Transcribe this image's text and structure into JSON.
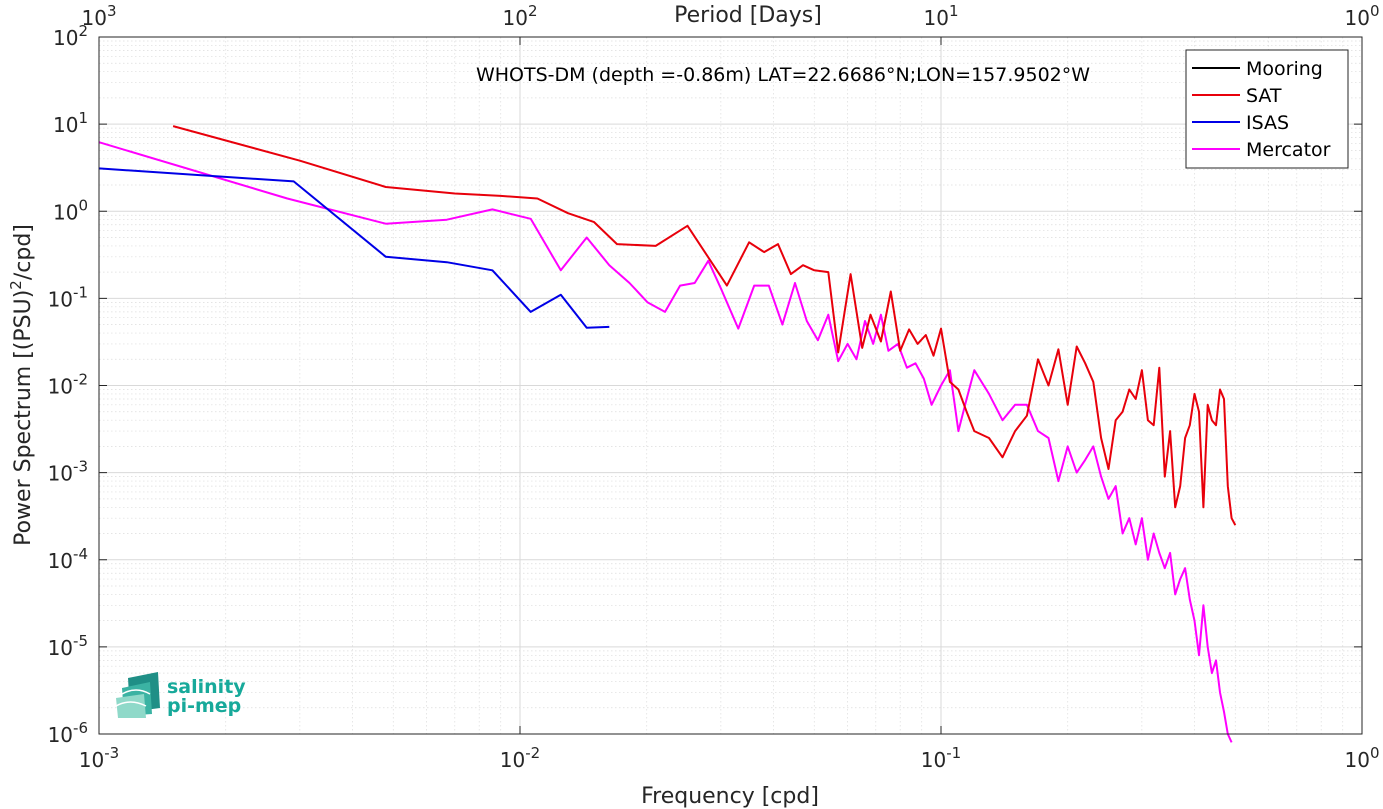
{
  "chart_data": {
    "type": "line",
    "title": "WHOTS-DM (depth =-0.86m) LAT=22.6686°N;LON=157.9502°W",
    "xlabel": "Frequency [cpd]",
    "ylabel": "Power Spectrum [(PSU)^2/cpd]",
    "x2label": "Period [Days]",
    "xscale": "log",
    "yscale": "log",
    "xlim": [
      0.001,
      1
    ],
    "ylim": [
      1e-06,
      100
    ],
    "grid": true,
    "legend_position": "top-right",
    "x_ticks": [
      {
        "value": 0.001,
        "base": "10",
        "exp": "-3"
      },
      {
        "value": 0.01,
        "base": "10",
        "exp": "-2"
      },
      {
        "value": 0.1,
        "base": "10",
        "exp": "-1"
      },
      {
        "value": 1,
        "base": "10",
        "exp": "0"
      }
    ],
    "y_ticks": [
      {
        "value": 1e-06,
        "base": "10",
        "exp": "-6"
      },
      {
        "value": 1e-05,
        "base": "10",
        "exp": "-5"
      },
      {
        "value": 0.0001,
        "base": "10",
        "exp": "-4"
      },
      {
        "value": 0.001,
        "base": "10",
        "exp": "-3"
      },
      {
        "value": 0.01,
        "base": "10",
        "exp": "-2"
      },
      {
        "value": 0.1,
        "base": "10",
        "exp": "-1"
      },
      {
        "value": 1,
        "base": "10",
        "exp": "0"
      },
      {
        "value": 10,
        "base": "10",
        "exp": "1"
      },
      {
        "value": 100,
        "base": "10",
        "exp": "2"
      }
    ],
    "top_ticks": [
      {
        "value": 0.001,
        "base": "10",
        "exp": "3"
      },
      {
        "value": 0.01,
        "base": "10",
        "exp": "2"
      },
      {
        "value": 0.1,
        "base": "10",
        "exp": "1"
      },
      {
        "value": 1,
        "base": "10",
        "exp": "0"
      }
    ],
    "series": [
      {
        "name": "Mooring",
        "color": "#000000",
        "x": [],
        "y": []
      },
      {
        "name": "SAT",
        "color": "#e8000b",
        "x": [
          0.0015,
          0.003,
          0.0048,
          0.007,
          0.009,
          0.011,
          0.013,
          0.015,
          0.017,
          0.021,
          0.025,
          0.031,
          0.035,
          0.038,
          0.041,
          0.044,
          0.047,
          0.05,
          0.054,
          0.057,
          0.061,
          0.065,
          0.068,
          0.072,
          0.076,
          0.08,
          0.084,
          0.088,
          0.092,
          0.096,
          0.1,
          0.105,
          0.11,
          0.115,
          0.12,
          0.13,
          0.14,
          0.15,
          0.16,
          0.17,
          0.18,
          0.19,
          0.2,
          0.21,
          0.22,
          0.23,
          0.24,
          0.25,
          0.26,
          0.27,
          0.28,
          0.29,
          0.3,
          0.31,
          0.32,
          0.33,
          0.34,
          0.35,
          0.36,
          0.37,
          0.38,
          0.39,
          0.4,
          0.41,
          0.42,
          0.43,
          0.44,
          0.45,
          0.46,
          0.47,
          0.48,
          0.49,
          0.5
        ],
        "y": [
          9.5,
          3.8,
          1.9,
          1.6,
          1.5,
          1.4,
          0.95,
          0.75,
          0.42,
          0.4,
          0.68,
          0.14,
          0.44,
          0.34,
          0.42,
          0.19,
          0.24,
          0.21,
          0.2,
          0.024,
          0.19,
          0.027,
          0.065,
          0.032,
          0.12,
          0.025,
          0.044,
          0.03,
          0.038,
          0.022,
          0.045,
          0.011,
          0.009,
          0.005,
          0.003,
          0.0025,
          0.0015,
          0.003,
          0.0045,
          0.02,
          0.01,
          0.026,
          0.006,
          0.028,
          0.018,
          0.011,
          0.0025,
          0.0011,
          0.004,
          0.005,
          0.009,
          0.007,
          0.015,
          0.004,
          0.0035,
          0.016,
          0.0009,
          0.003,
          0.0004,
          0.0007,
          0.0025,
          0.0035,
          0.008,
          0.005,
          0.0004,
          0.006,
          0.004,
          0.0035,
          0.009,
          0.007,
          0.0007,
          0.0003,
          0.00025
        ]
      },
      {
        "name": "ISAS",
        "color": "#0000e6",
        "x": [
          0.001,
          0.0029,
          0.0048,
          0.0067,
          0.0086,
          0.0106,
          0.0125,
          0.0144,
          0.0163
        ],
        "y": [
          3.1,
          2.2,
          0.3,
          0.26,
          0.21,
          0.07,
          0.11,
          0.046,
          0.047
        ]
      },
      {
        "name": "Mercator",
        "color": "#ff00ff",
        "x": [
          0.001,
          0.0028,
          0.0048,
          0.0067,
          0.0086,
          0.0106,
          0.0125,
          0.0144,
          0.0163,
          0.0182,
          0.0201,
          0.0221,
          0.024,
          0.026,
          0.028,
          0.03,
          0.033,
          0.036,
          0.039,
          0.042,
          0.045,
          0.048,
          0.051,
          0.054,
          0.057,
          0.06,
          0.063,
          0.066,
          0.069,
          0.072,
          0.075,
          0.079,
          0.083,
          0.087,
          0.091,
          0.095,
          0.1,
          0.105,
          0.11,
          0.115,
          0.12,
          0.13,
          0.14,
          0.15,
          0.16,
          0.17,
          0.18,
          0.19,
          0.2,
          0.21,
          0.22,
          0.23,
          0.24,
          0.25,
          0.26,
          0.27,
          0.28,
          0.29,
          0.3,
          0.31,
          0.32,
          0.33,
          0.34,
          0.35,
          0.36,
          0.37,
          0.38,
          0.39,
          0.4,
          0.41,
          0.42,
          0.43,
          0.44,
          0.45,
          0.46,
          0.47,
          0.48,
          0.49
        ],
        "y": [
          6.2,
          1.4,
          0.72,
          0.8,
          1.05,
          0.82,
          0.21,
          0.5,
          0.24,
          0.15,
          0.09,
          0.07,
          0.14,
          0.15,
          0.27,
          0.13,
          0.045,
          0.14,
          0.14,
          0.05,
          0.15,
          0.055,
          0.033,
          0.065,
          0.019,
          0.03,
          0.02,
          0.055,
          0.03,
          0.065,
          0.025,
          0.03,
          0.016,
          0.018,
          0.012,
          0.006,
          0.01,
          0.015,
          0.003,
          0.007,
          0.015,
          0.008,
          0.004,
          0.006,
          0.006,
          0.003,
          0.0025,
          0.0008,
          0.002,
          0.001,
          0.0014,
          0.002,
          0.0009,
          0.0005,
          0.0007,
          0.0002,
          0.0003,
          0.00015,
          0.0003,
          0.0001,
          0.0002,
          0.00012,
          8e-05,
          0.00012,
          4e-05,
          6e-05,
          8e-05,
          3.5e-05,
          2e-05,
          8e-06,
          3e-05,
          1e-05,
          5e-06,
          7e-06,
          3e-06,
          1.8e-06,
          1e-06,
          8e-07
        ]
      }
    ]
  },
  "logo": {
    "line1": "salinity",
    "line2": "pi-mep"
  }
}
